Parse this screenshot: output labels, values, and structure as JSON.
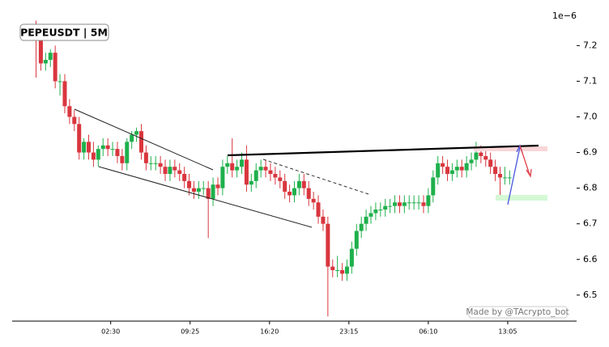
{
  "chart_data": {
    "type": "candlestick",
    "title": "PEPEUSDT | 5M",
    "offset_label": "1e−6",
    "watermark": "Made by @TAcrypto_bot",
    "up_color": "#1fb04c",
    "down_color": "#d9363e",
    "x": [
      25,
      30,
      35,
      40,
      45,
      50,
      55,
      60,
      65,
      70,
      75,
      80,
      85,
      90,
      95,
      100,
      105,
      110,
      115,
      120,
      125,
      130,
      135,
      140,
      145,
      150,
      155,
      160,
      165,
      170,
      175,
      180,
      185,
      190,
      195,
      200,
      205,
      210,
      215,
      220,
      225,
      230,
      235,
      240,
      245,
      250,
      255,
      260,
      265,
      270,
      275,
      280,
      285,
      290,
      295,
      300,
      305,
      310,
      315,
      320,
      325,
      330,
      335,
      340,
      345,
      350,
      355,
      360,
      365,
      370,
      375,
      380,
      385,
      390,
      395,
      400,
      405,
      410,
      415,
      420,
      425,
      430,
      435,
      440,
      445,
      450,
      455,
      460,
      465,
      470,
      475,
      480,
      485,
      490,
      495,
      500,
      505,
      510,
      515,
      520
    ],
    "open": [
      7.25,
      7.23,
      7.15,
      7.16,
      7.18,
      7.1,
      7.1,
      7.03,
      7.0,
      6.98,
      6.9,
      6.93,
      6.9,
      6.88,
      6.91,
      6.92,
      6.91,
      6.91,
      6.89,
      6.87,
      6.93,
      6.95,
      6.96,
      6.9,
      6.87,
      6.87,
      6.87,
      6.86,
      6.84,
      6.86,
      6.85,
      6.84,
      6.82,
      6.8,
      6.79,
      6.8,
      6.8,
      6.77,
      6.81,
      6.8,
      6.86,
      6.87,
      6.85,
      6.86,
      6.88,
      6.81,
      6.82,
      6.85,
      6.86,
      6.85,
      6.84,
      6.83,
      6.82,
      6.79,
      6.78,
      6.8,
      6.82,
      6.8,
      6.77,
      6.76,
      6.72,
      6.7,
      6.58,
      6.57,
      6.57,
      6.56,
      6.58,
      6.63,
      6.68,
      6.7,
      6.72,
      6.73,
      6.74,
      6.74,
      6.75,
      6.75,
      6.76,
      6.75,
      6.76,
      6.76,
      6.76,
      6.76,
      6.75,
      6.78,
      6.83,
      6.87,
      6.86,
      6.84,
      6.85,
      6.86,
      6.85,
      6.87,
      6.88,
      6.9,
      6.89,
      6.88,
      6.86,
      6.84,
      6.83,
      6.83
    ],
    "high": [
      7.27,
      7.25,
      7.18,
      7.19,
      7.2,
      7.12,
      7.12,
      7.05,
      7.02,
      7.0,
      6.94,
      6.95,
      6.93,
      6.92,
      6.94,
      6.94,
      6.93,
      6.93,
      6.91,
      6.94,
      6.96,
      6.97,
      6.98,
      6.92,
      6.89,
      6.89,
      6.89,
      6.88,
      6.88,
      6.88,
      6.87,
      6.86,
      6.84,
      6.82,
      6.82,
      6.82,
      6.82,
      6.83,
      6.83,
      6.88,
      6.89,
      6.94,
      6.88,
      6.9,
      6.92,
      6.84,
      6.87,
      6.88,
      6.88,
      6.87,
      6.86,
      6.85,
      6.84,
      6.81,
      6.82,
      6.84,
      6.84,
      6.82,
      6.79,
      6.78,
      6.74,
      6.72,
      6.6,
      6.61,
      6.59,
      6.6,
      6.65,
      6.7,
      6.72,
      6.74,
      6.75,
      6.76,
      6.76,
      6.77,
      6.77,
      6.78,
      6.78,
      6.78,
      6.78,
      6.78,
      6.78,
      6.78,
      6.8,
      6.85,
      6.89,
      6.89,
      6.88,
      6.87,
      6.88,
      6.88,
      6.89,
      6.9,
      6.93,
      6.92,
      6.91,
      6.9,
      6.88,
      6.86,
      6.86,
      6.85
    ],
    "low": [
      7.11,
      7.13,
      7.13,
      7.14,
      7.08,
      7.06,
      7.01,
      6.98,
      6.96,
      6.88,
      6.88,
      6.88,
      6.86,
      6.86,
      6.89,
      6.89,
      6.89,
      6.87,
      6.85,
      6.85,
      6.91,
      6.93,
      6.88,
      6.85,
      6.85,
      6.85,
      6.84,
      6.82,
      6.82,
      6.83,
      6.82,
      6.8,
      6.78,
      6.77,
      6.77,
      6.78,
      6.66,
      6.75,
      6.78,
      6.78,
      6.84,
      6.83,
      6.83,
      6.84,
      6.79,
      6.79,
      6.8,
      6.83,
      6.83,
      6.82,
      6.81,
      6.8,
      6.77,
      6.76,
      6.76,
      6.78,
      6.78,
      6.75,
      6.74,
      6.7,
      6.68,
      6.44,
      6.55,
      6.55,
      6.54,
      6.54,
      6.56,
      6.61,
      6.66,
      6.68,
      6.7,
      6.71,
      6.72,
      6.72,
      6.73,
      6.73,
      6.73,
      6.73,
      6.74,
      6.74,
      6.74,
      6.73,
      6.73,
      6.76,
      6.81,
      6.84,
      6.82,
      6.82,
      6.83,
      6.83,
      6.83,
      6.85,
      6.86,
      6.87,
      6.86,
      6.84,
      6.82,
      6.77,
      6.81,
      6.81
    ],
    "close": [
      7.23,
      7.15,
      7.16,
      7.18,
      7.1,
      7.1,
      7.03,
      7.0,
      6.98,
      6.9,
      6.93,
      6.9,
      6.88,
      6.91,
      6.92,
      6.91,
      6.91,
      6.89,
      6.87,
      6.93,
      6.95,
      6.96,
      6.9,
      6.87,
      6.87,
      6.87,
      6.86,
      6.84,
      6.86,
      6.85,
      6.84,
      6.82,
      6.8,
      6.79,
      6.8,
      6.8,
      6.77,
      6.81,
      6.8,
      6.86,
      6.87,
      6.85,
      6.86,
      6.88,
      6.81,
      6.82,
      6.85,
      6.86,
      6.85,
      6.84,
      6.83,
      6.82,
      6.79,
      6.78,
      6.8,
      6.82,
      6.8,
      6.77,
      6.76,
      6.72,
      6.7,
      6.58,
      6.57,
      6.57,
      6.56,
      6.58,
      6.63,
      6.68,
      6.7,
      6.72,
      6.73,
      6.74,
      6.74,
      6.75,
      6.75,
      6.76,
      6.75,
      6.76,
      6.76,
      6.76,
      6.76,
      6.75,
      6.78,
      6.83,
      6.87,
      6.86,
      6.84,
      6.85,
      6.86,
      6.85,
      6.87,
      6.88,
      6.9,
      6.89,
      6.88,
      6.86,
      6.84,
      6.83,
      6.83,
      6.83
    ],
    "xlim": [
      0,
      590
    ],
    "ylim": [
      6.427,
      7.278
    ],
    "xticks": [
      {
        "value": 103,
        "label": "02:30"
      },
      {
        "value": 186,
        "label": "09:25"
      },
      {
        "value": 269,
        "label": "16:20"
      },
      {
        "value": 352,
        "label": "23:15"
      },
      {
        "value": 435,
        "label": "06:10"
      },
      {
        "value": 518,
        "label": "13:05"
      }
    ],
    "yticks": [
      6.5,
      6.6,
      6.7,
      6.8,
      6.9,
      {
        "value": 7.0,
        "label": "7.0"
      },
      7.1,
      7.2
    ]
  }
}
